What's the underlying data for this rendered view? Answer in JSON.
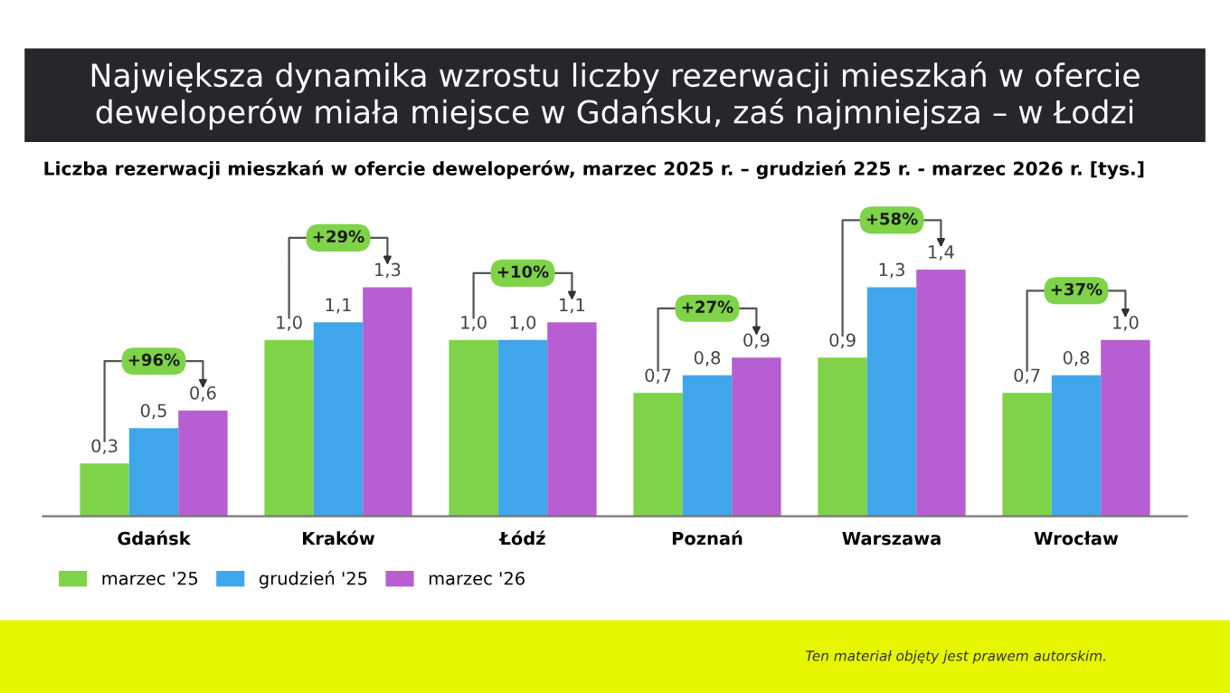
{
  "chart_data": {
    "type": "bar",
    "title": "Największa dynamika wzrostu liczby rezerwacji mieszkań w ofercie deweloperów miała miejsce w Gdańsku, zaś najmniejsza – w Łodzi",
    "subtitle": "Liczba rezerwacji mieszkań w ofercie deweloperów, marzec 2025 r. – grudzień 225 r. - marzec 2026 r. [tys.]",
    "categories": [
      "Gdańsk",
      "Kraków",
      "Łódź",
      "Poznań",
      "Warszawa",
      "Wrocław"
    ],
    "series": [
      {
        "name": "marzec '25",
        "color": "#7ed348",
        "values": [
          0.3,
          1.0,
          1.0,
          0.7,
          0.9,
          0.7
        ],
        "value_labels": [
          "0,3",
          "1,0",
          "1,0",
          "0,7",
          "0,9",
          "0,7"
        ]
      },
      {
        "name": "grudzień '25",
        "color": "#3fa6ec",
        "values": [
          0.5,
          1.1,
          1.0,
          0.8,
          1.3,
          0.8
        ],
        "value_labels": [
          "0,5",
          "1,1",
          "1,0",
          "0,8",
          "1,3",
          "0,8"
        ]
      },
      {
        "name": "marzec '26",
        "color": "#b65ed2",
        "values": [
          0.6,
          1.3,
          1.1,
          0.9,
          1.4,
          1.0
        ],
        "value_labels": [
          "0,6",
          "1,3",
          "1,1",
          "0,9",
          "1,4",
          "1,0"
        ]
      }
    ],
    "annotations": [
      "+96%",
      "+29%",
      "+10%",
      "+27%",
      "+58%",
      "+37%",
      "Ten materiał objęty jest prawem autorskim."
    ],
    "legend": "bottom left",
    "grid": false
  }
}
